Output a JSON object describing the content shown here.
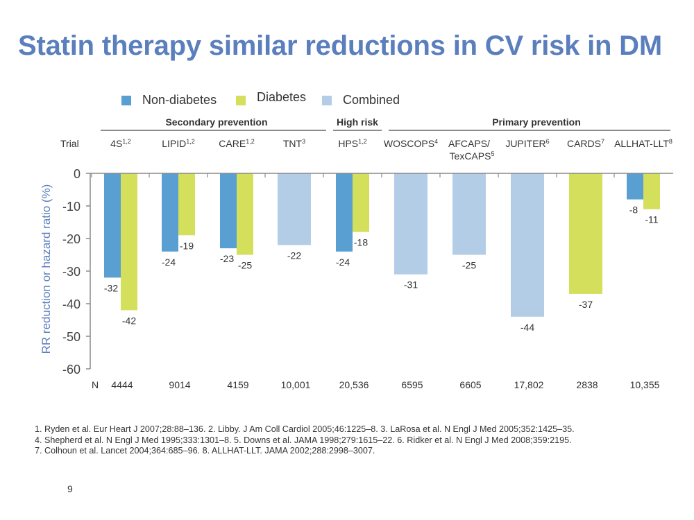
{
  "title": "Statin therapy similar reductions in CV risk in DM",
  "colors": {
    "non_diabetes": "#5a9fd2",
    "diabetes": "#d4df5b",
    "combined": "#b4cde6",
    "title": "#5b7fbd",
    "axis": "#5a5a5a"
  },
  "legend": [
    {
      "label": "Non-diabetes",
      "color": "#5a9fd2"
    },
    {
      "label": "Diabetes",
      "color": "#d4df5b"
    },
    {
      "label": "Combined",
      "color": "#b4cde6"
    }
  ],
  "groups": {
    "secondary": "Secondary prevention",
    "high_risk": "High risk",
    "primary": "Primary prevention"
  },
  "trial_label": "Trial",
  "n_label": "N",
  "chart_data": {
    "type": "bar",
    "ylabel": "RR reduction or hazard ratio  (%)",
    "ylim": [
      -60,
      0
    ],
    "yticks": [
      0,
      -10,
      -20,
      -30,
      -40,
      -50,
      -60
    ],
    "categories": [
      {
        "name": "4S",
        "sup": "1,2",
        "n": "4444"
      },
      {
        "name": "LIPID",
        "sup": "1,2",
        "n": "9014"
      },
      {
        "name": "CARE",
        "sup": "1,2",
        "n": "4159"
      },
      {
        "name": "TNT",
        "sup": "3",
        "n": "10,001"
      },
      {
        "name": "HPS",
        "sup": "1,2",
        "n": "20,536"
      },
      {
        "name": "WOSCOPS",
        "sup": "4",
        "n": "6595"
      },
      {
        "name": "AFCAPS/",
        "name2": "TexCAPS",
        "sup": "5",
        "n": "6605"
      },
      {
        "name": "JUPITER",
        "sup": "6",
        "n": "17,802"
      },
      {
        "name": "CARDS",
        "sup": "7",
        "n": "2838"
      },
      {
        "name": "ALLHAT-LLT",
        "sup": "8",
        "n": "10,355"
      }
    ],
    "series": [
      {
        "name": "Non-diabetes",
        "values": [
          -32,
          -24,
          -23,
          null,
          -24,
          null,
          null,
          null,
          null,
          -8
        ]
      },
      {
        "name": "Diabetes",
        "values": [
          -42,
          -19,
          -25,
          null,
          -18,
          null,
          null,
          null,
          -37,
          -11
        ]
      },
      {
        "name": "Combined",
        "values": [
          null,
          null,
          null,
          -22,
          null,
          -31,
          -25,
          -44,
          null,
          null
        ]
      }
    ]
  },
  "references": [
    "1. Ryden et al. Eur Heart J 2007;28:88–136.  2. Libby. J Am Coll Cardiol 2005;46:1225–8.  3. LaRosa et al. N Engl J Med 2005;352:1425–35.",
    "4. Shepherd et al. N Engl J Med 1995;333:1301–8.  5. Downs et al. JAMA 1998;279:1615–22.  6. Ridker et al. N Engl J Med 2008;359:2195.",
    "7. Colhoun et al. Lancet 2004;364:685–96.  8. ALLHAT-LLT. JAMA 2002;288:2998–3007."
  ],
  "page_number": "9"
}
